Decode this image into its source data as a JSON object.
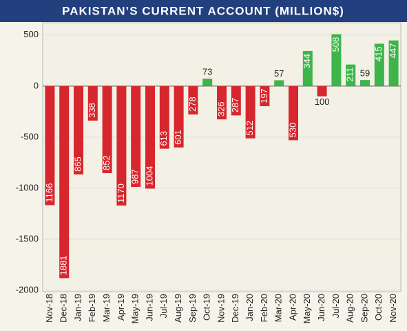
{
  "chart_data": {
    "type": "bar",
    "title": "PAKISTAN’S CURRENT ACCOUNT (MILLION$)",
    "categories": [
      "Nov-18",
      "Dec-18",
      "Jan-19",
      "Feb-19",
      "Mar-19",
      "Apr-19",
      "May-19",
      "Jun-19",
      "Jul-19",
      "Aug-19",
      "Sep-19",
      "Oct-19",
      "Nov-19",
      "Dec-19",
      "Jan-20",
      "Feb-20",
      "Mar-20",
      "Apr-20",
      "May-20",
      "Jun-20",
      "Jul-20",
      "Aug-20",
      "Sep-20",
      "Oct-20",
      "Nov-20"
    ],
    "values": [
      -1166,
      -1881,
      -865,
      -338,
      -852,
      -1170,
      -987,
      -1004,
      -613,
      -601,
      -278,
      73,
      -326,
      -287,
      -512,
      -197,
      57,
      -530,
      344,
      -100,
      508,
      211,
      59,
      415,
      447
    ],
    "value_labels": [
      "1166",
      "1881",
      "865",
      "338",
      "852",
      "1170",
      "987",
      "1004",
      "613",
      "601",
      "278",
      "73",
      "326",
      "287",
      "512",
      "197",
      "57",
      "530",
      "344",
      "100",
      "508",
      "211",
      "59",
      "415",
      "447"
    ],
    "positive_color": "#3db54a",
    "negative_color": "#d7262d",
    "ylim": [
      -2000,
      600
    ],
    "yticks": [
      -2000,
      -1500,
      -1000,
      -500,
      0,
      500
    ],
    "grid": true
  }
}
